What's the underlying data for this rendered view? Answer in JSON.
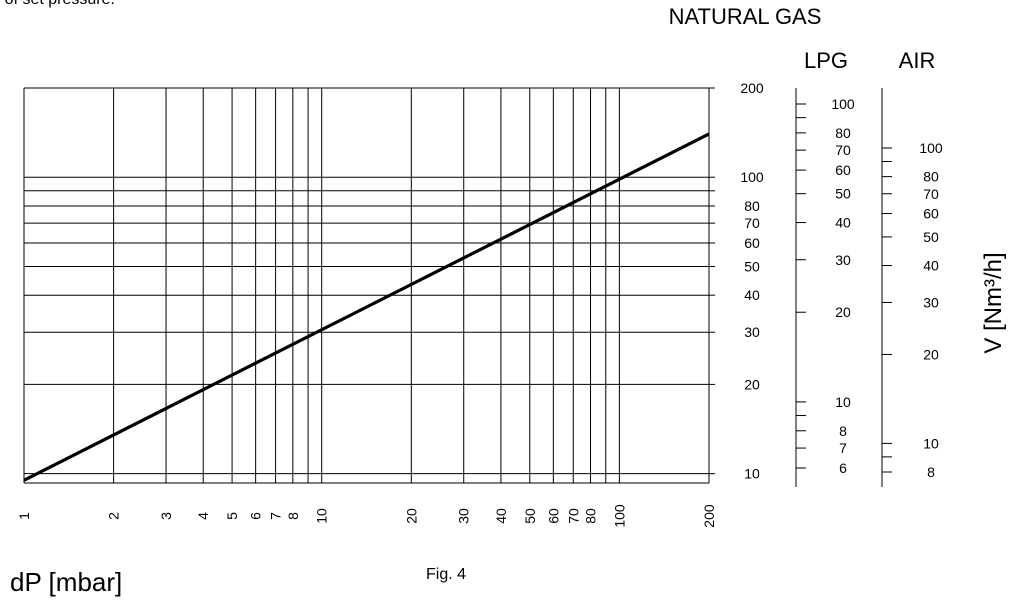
{
  "header_fragment": "% of set pressure.",
  "caption": "Fig. 4",
  "chart_data": {
    "type": "line",
    "xlabel": "dP [mbar]",
    "ylabel": "V [Nm³/h]",
    "x_scale": "log",
    "y_scale": "log",
    "xlim": [
      1,
      200
    ],
    "ylim": [
      9.3,
      200
    ],
    "grid": true,
    "x_ticks": [
      1,
      2,
      3,
      4,
      5,
      6,
      7,
      8,
      9,
      10,
      20,
      30,
      40,
      50,
      60,
      70,
      80,
      90,
      100,
      200
    ],
    "x_tick_labels": [
      "1",
      "2",
      "3",
      "4",
      "5",
      "6",
      "7",
      "8",
      "10",
      "20",
      "30",
      "40",
      "50",
      "60",
      "70",
      "80",
      "100",
      "200"
    ],
    "x_tick_label_values": [
      1,
      2,
      3,
      4,
      5,
      6,
      7,
      8,
      10,
      20,
      30,
      40,
      50,
      60,
      70,
      80,
      100,
      200
    ],
    "series": [
      {
        "name": "",
        "x": [
          1,
          200
        ],
        "y": [
          9.5,
          140
        ],
        "color": "#000000"
      }
    ],
    "scales": [
      {
        "name": "NATURAL GAS",
        "ticks": [
          10,
          20,
          30,
          40,
          50,
          60,
          70,
          80,
          90,
          100,
          200
        ],
        "labels": [
          "10",
          "20",
          "30",
          "40",
          "50",
          "60",
          "70",
          "80",
          "100",
          "200"
        ],
        "label_values": [
          10,
          20,
          30,
          40,
          50,
          60,
          70,
          80,
          100,
          200
        ]
      },
      {
        "name": "LPG",
        "ticks": [
          6,
          7,
          8,
          9,
          10,
          20,
          30,
          40,
          50,
          60,
          70,
          80,
          90,
          100
        ],
        "labels": [
          "6",
          "7",
          "8",
          "10",
          "20",
          "30",
          "40",
          "50",
          "60",
          "70",
          "80",
          "100"
        ],
        "label_values": [
          6,
          7,
          8,
          10,
          20,
          30,
          40,
          50,
          60,
          70,
          80,
          100
        ]
      },
      {
        "name": "AIR",
        "ticks": [
          8,
          9,
          10,
          20,
          30,
          40,
          50,
          60,
          70,
          80,
          90,
          100
        ],
        "labels": [
          "8",
          "10",
          "20",
          "30",
          "40",
          "50",
          "60",
          "70",
          "80",
          "100"
        ],
        "label_values": [
          8,
          10,
          20,
          30,
          40,
          50,
          60,
          70,
          80,
          100
        ]
      }
    ]
  }
}
